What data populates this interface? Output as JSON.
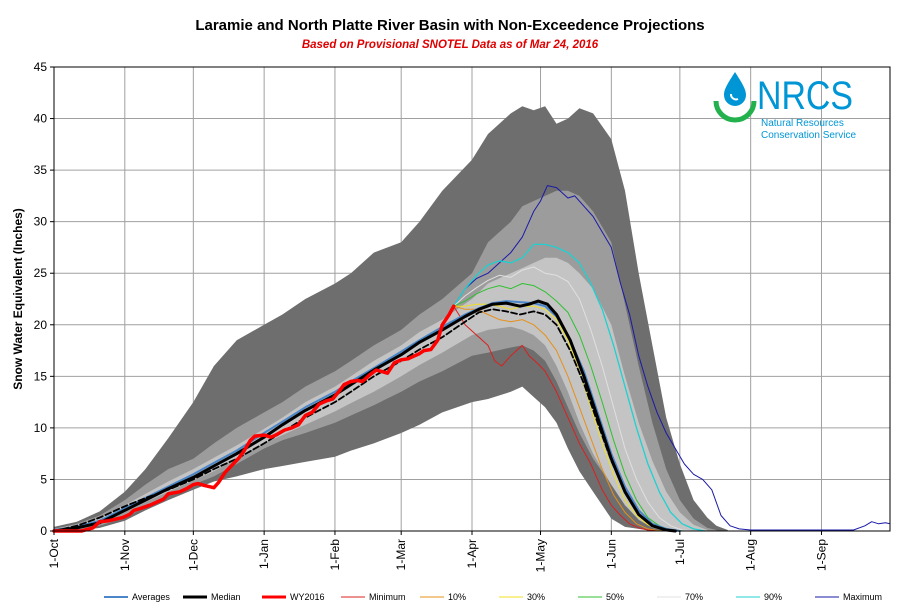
{
  "chart_data": {
    "type": "area",
    "title": "Laramie and North Platte River Basin with Non-Exceedence Projections",
    "subtitle": "Based on Provisional SNOTEL Data as of Mar 24, 2016",
    "xlabel": "",
    "ylabel": "Snow Water Equivalent (Inches)",
    "ylim": [
      0,
      45
    ],
    "yticks": [
      "0",
      "5",
      "10",
      "15",
      "20",
      "25",
      "30",
      "35",
      "40",
      "45"
    ],
    "xticks": [
      "1-Oct",
      "1-Nov",
      "1-Dec",
      "1-Jan",
      "1-Feb",
      "1-Mar",
      "1-Apr",
      "1-May",
      "1-Jun",
      "1-Jul",
      "1-Aug",
      "1-Sep"
    ],
    "xtick_days": [
      0,
      31,
      61,
      92,
      123,
      152,
      183,
      213,
      244,
      274,
      305,
      336
    ],
    "x_domain_days": [
      0,
      366
    ],
    "grid": true,
    "legend_position": "bottom",
    "colors": {
      "band_outer": "#6e6e6e",
      "band_mid": "#9c9c9c",
      "band_inner": "#c4c4c4",
      "averages": "#4a86c8",
      "median": "#000000",
      "wy2016": "#ff0000",
      "minimum": "#d92020",
      "p10": "#e69018",
      "p30": "#f0e020",
      "p50": "#30c030",
      "p70": "#e0e0e0",
      "p90": "#20d0d0",
      "maximum": "#1a1aa8"
    },
    "bands": [
      {
        "x": [
          0,
          10,
          20,
          31,
          40,
          50,
          61,
          70,
          80,
          92,
          100,
          110,
          123,
          130,
          140,
          152,
          160,
          170,
          183,
          190,
          200,
          205,
          210,
          215,
          220,
          225,
          230,
          236,
          244,
          250,
          256,
          262,
          268,
          274,
          280,
          286,
          290,
          295
        ],
        "upper": [
          0.4,
          0.9,
          1.9,
          3.8,
          6,
          9,
          12.5,
          16,
          18.5,
          20,
          21,
          22.5,
          24,
          25,
          27,
          28,
          30,
          33,
          36,
          38.5,
          40.5,
          41.2,
          40.8,
          41.2,
          39.5,
          40,
          41,
          40.5,
          38,
          33,
          25,
          18,
          11,
          6.5,
          3,
          1.3,
          0.5,
          0.1
        ],
        "lower": [
          0,
          0,
          0.3,
          1,
          2,
          3,
          4,
          4.8,
          5.3,
          6,
          6.3,
          6.7,
          7.2,
          7.8,
          8.5,
          9.5,
          10.3,
          11.5,
          12.5,
          12.8,
          13.5,
          14,
          13,
          12,
          10.5,
          8,
          5.8,
          3.8,
          1.2,
          0.4,
          0.2,
          0,
          0,
          0,
          0,
          0,
          0,
          0
        ]
      },
      {
        "x": [
          0,
          10,
          20,
          31,
          40,
          50,
          61,
          70,
          80,
          92,
          100,
          110,
          123,
          130,
          140,
          152,
          160,
          170,
          183,
          190,
          200,
          205,
          210,
          215,
          220,
          225,
          230,
          236,
          244,
          250,
          256,
          262,
          268,
          274,
          280,
          286,
          290
        ],
        "upper": [
          0.2,
          0.7,
          1.5,
          3,
          4.5,
          6,
          7,
          8.5,
          10,
          11.5,
          12.5,
          14,
          15.5,
          16.5,
          18,
          19.5,
          21,
          22.5,
          25,
          28,
          30,
          31.5,
          32,
          32.5,
          33,
          33,
          32.5,
          31,
          28,
          22,
          16,
          10.5,
          6,
          3,
          1.2,
          0.3,
          0.1
        ],
        "lower": [
          0,
          0.1,
          0.5,
          1.3,
          2.3,
          3.5,
          4.5,
          5.3,
          6.5,
          8,
          8.8,
          9.5,
          10.5,
          11.2,
          12.2,
          13.5,
          14.5,
          15.5,
          17,
          17.3,
          17.8,
          18,
          17.5,
          16.5,
          14.5,
          12,
          9.5,
          7,
          4.5,
          2.5,
          1.2,
          0.5,
          0.1,
          0,
          0,
          0,
          0
        ]
      },
      {
        "x": [
          0,
          10,
          20,
          31,
          40,
          50,
          61,
          70,
          80,
          92,
          100,
          110,
          123,
          130,
          140,
          152,
          160,
          170,
          183,
          190,
          200,
          205,
          210,
          215,
          220,
          225,
          230,
          236,
          244,
          250,
          256,
          262,
          268,
          274,
          280,
          286
        ],
        "upper": [
          0.2,
          0.6,
          1.3,
          2.5,
          3.6,
          4.8,
          6,
          7.1,
          8.3,
          9.9,
          11,
          12.5,
          14,
          15,
          16.5,
          18,
          19.3,
          20.5,
          22.5,
          24,
          25,
          25.5,
          26,
          26.5,
          26.5,
          26,
          25,
          23.5,
          20,
          15,
          10.5,
          6.8,
          3.8,
          1.8,
          0.6,
          0.1
        ],
        "lower": [
          0,
          0.2,
          0.7,
          1.8,
          2.8,
          3.8,
          4.9,
          5.8,
          7,
          8.5,
          9.3,
          10.3,
          11.6,
          12.4,
          13.5,
          15,
          16.1,
          17.3,
          19,
          19.5,
          19.8,
          19.5,
          19,
          18,
          16,
          13.5,
          10.5,
          7.5,
          4.5,
          2.5,
          1.1,
          0.3,
          0,
          0,
          0,
          0
        ]
      }
    ],
    "series": [
      {
        "name": "Averages",
        "key": "averages",
        "width": 2,
        "dash": "",
        "x": [
          0,
          10,
          20,
          31,
          40,
          50,
          61,
          70,
          80,
          92,
          100,
          110,
          123,
          130,
          140,
          152,
          160,
          170,
          180,
          186,
          192,
          198,
          204,
          210,
          215,
          220,
          226,
          232,
          238,
          244,
          250,
          256,
          262,
          268,
          274
        ],
        "y": [
          0.1,
          0.4,
          1,
          2.2,
          3.2,
          4.3,
          5.5,
          6.6,
          7.8,
          9.5,
          10.6,
          12,
          13.5,
          14.5,
          15.8,
          17.4,
          18.5,
          19.8,
          21,
          21.6,
          22.1,
          22.3,
          22.2,
          22.1,
          21.8,
          20.8,
          18.5,
          15.5,
          11.5,
          7.5,
          4.3,
          2,
          0.7,
          0.2,
          0
        ]
      },
      {
        "name": "Median",
        "key": "median",
        "width": 3,
        "dash": "",
        "x": [
          0,
          10,
          20,
          31,
          40,
          50,
          61,
          70,
          80,
          92,
          100,
          110,
          123,
          130,
          140,
          152,
          160,
          170,
          180,
          186,
          192,
          198,
          204,
          208,
          212,
          216,
          220,
          226,
          232,
          238,
          244,
          250,
          256,
          262,
          268,
          272
        ],
        "y": [
          0,
          0.3,
          0.8,
          2,
          3,
          4.1,
          5.2,
          6.3,
          7.5,
          9.1,
          10.3,
          11.7,
          13.2,
          14.2,
          15.6,
          17.1,
          18.3,
          19.5,
          20.8,
          21.5,
          22,
          22.1,
          21.8,
          22,
          22.3,
          22,
          21,
          18.5,
          15,
          11,
          7,
          3.8,
          1.6,
          0.5,
          0.1,
          0
        ]
      },
      {
        "name": "WY2016",
        "key": "wy2016",
        "width": 3.5,
        "dash": "",
        "x": [
          0,
          12,
          17,
          20,
          24,
          28,
          30,
          33,
          35,
          38,
          42,
          45,
          48,
          50,
          55,
          58,
          61,
          63,
          66,
          70,
          72,
          75,
          78,
          81,
          83,
          86,
          88,
          92,
          95,
          97,
          101,
          104,
          107,
          110,
          113,
          116,
          119,
          122,
          125,
          127,
          130,
          133,
          135,
          138,
          141,
          143,
          146,
          149,
          152,
          155,
          158,
          160,
          162,
          165,
          168,
          170,
          173,
          175
        ],
        "y": [
          0,
          0,
          0.3,
          0.9,
          1,
          1.2,
          1.3,
          1.6,
          2,
          2.2,
          2.5,
          2.8,
          3.1,
          3.6,
          3.8,
          4.1,
          4.5,
          4.6,
          4.4,
          4.2,
          4.7,
          5.7,
          6.4,
          7.1,
          7.7,
          8.8,
          9.2,
          9.3,
          9.1,
          9.3,
          9.8,
          10,
          10.3,
          11.2,
          11.5,
          12.3,
          12.6,
          12.8,
          13.6,
          14.2,
          14.5,
          14.6,
          14.5,
          15.1,
          15.6,
          15.5,
          15.3,
          16.3,
          16.6,
          16.7,
          17,
          17.2,
          17.5,
          17.6,
          18.5,
          20,
          21,
          21.8
        ]
      },
      {
        "name": "Minimum",
        "key": "minimum",
        "width": 1,
        "dash": "",
        "x": [
          175,
          180,
          185,
          190,
          193,
          196,
          200,
          205,
          208,
          212,
          215,
          220,
          225,
          230,
          235,
          240,
          244,
          248,
          252,
          256,
          260,
          264
        ],
        "y": [
          21.8,
          20,
          19,
          18,
          16.5,
          16,
          17,
          18,
          17,
          16.2,
          15.5,
          13.5,
          11,
          8.5,
          6.5,
          4,
          2.5,
          1.5,
          0.7,
          0.3,
          0.1,
          0
        ]
      },
      {
        "name": "10%",
        "key": "p10",
        "width": 1,
        "dash": "",
        "x": [
          175,
          180,
          185,
          190,
          195,
          200,
          205,
          210,
          215,
          220,
          225,
          230,
          235,
          240,
          245,
          250,
          255,
          260,
          264,
          268
        ],
        "y": [
          21.8,
          21.5,
          21.5,
          21,
          20.5,
          20.3,
          20.5,
          20,
          19,
          17.5,
          15,
          12,
          9,
          6,
          3.5,
          1.8,
          0.7,
          0.2,
          0.05,
          0
        ]
      },
      {
        "name": "30%",
        "key": "p30",
        "width": 1,
        "dash": "",
        "x": [
          175,
          180,
          185,
          190,
          195,
          200,
          205,
          210,
          215,
          220,
          225,
          230,
          235,
          240,
          245,
          250,
          255,
          260,
          265,
          270,
          274
        ],
        "y": [
          21.8,
          21.8,
          22,
          22,
          21.8,
          21.5,
          21.8,
          21.8,
          21.5,
          20.5,
          18.5,
          15.5,
          12,
          8.5,
          5.5,
          3,
          1.5,
          0.6,
          0.2,
          0.05,
          0
        ]
      },
      {
        "name": "50%",
        "key": "p50",
        "width": 1,
        "dash": "",
        "x": [
          175,
          180,
          185,
          190,
          195,
          200,
          205,
          210,
          215,
          220,
          225,
          230,
          235,
          240,
          245,
          250,
          255,
          260,
          265,
          270,
          276
        ],
        "y": [
          21.8,
          22.3,
          23,
          23.5,
          23.8,
          23.5,
          24,
          23.8,
          23.2,
          22.3,
          21.2,
          19,
          16,
          12.5,
          8.8,
          5.5,
          3,
          1.3,
          0.5,
          0.1,
          0
        ]
      },
      {
        "name": "70%",
        "key": "p70",
        "width": 1,
        "dash": "",
        "x": [
          175,
          180,
          185,
          190,
          195,
          200,
          205,
          210,
          215,
          220,
          225,
          230,
          235,
          240,
          245,
          250,
          255,
          260,
          265,
          270,
          275,
          280
        ],
        "y": [
          21.8,
          22.8,
          23.6,
          24.3,
          24.8,
          24.6,
          25.3,
          25.6,
          25,
          24.8,
          24.2,
          22.5,
          19.5,
          16,
          12,
          8,
          5,
          2.8,
          1.3,
          0.5,
          0.1,
          0
        ]
      },
      {
        "name": "90%",
        "key": "p90",
        "width": 1.3,
        "dash": "",
        "x": [
          175,
          180,
          185,
          190,
          195,
          200,
          205,
          210,
          215,
          220,
          225,
          230,
          235,
          240,
          245,
          250,
          255,
          260,
          265,
          270,
          275,
          280,
          285
        ],
        "y": [
          21.8,
          23.5,
          24.8,
          25.8,
          26.2,
          26,
          26.5,
          27.8,
          27.8,
          27.5,
          27,
          26,
          24,
          21.5,
          18,
          14,
          10,
          6.5,
          3.8,
          1.8,
          0.7,
          0.2,
          0
        ]
      },
      {
        "name": "Maximum",
        "key": "maximum",
        "width": 1,
        "dash": "",
        "x": [
          175,
          180,
          185,
          190,
          195,
          200,
          205,
          210,
          213,
          216,
          220,
          225,
          228,
          232,
          236,
          240,
          244,
          248,
          252,
          256,
          260,
          264,
          268,
          272,
          276,
          280,
          284,
          288,
          292,
          296,
          300,
          305,
          310,
          320,
          330,
          340,
          350,
          355,
          358,
          361,
          364,
          366
        ],
        "y": [
          21.8,
          23.5,
          24.5,
          25,
          26,
          27,
          28.5,
          31,
          32,
          33.5,
          33.3,
          32.3,
          32.5,
          31.5,
          30.5,
          29,
          27.5,
          24,
          21,
          17,
          14,
          11.5,
          9.5,
          8,
          6.5,
          5.5,
          5,
          4,
          1.5,
          0.5,
          0.2,
          0.1,
          0.1,
          0.1,
          0.1,
          0.1,
          0.1,
          0.5,
          0.9,
          0.7,
          0.8,
          0.7
        ]
      }
    ],
    "dashed_series": {
      "name": "Averages (dashed)",
      "key": "median",
      "width": 1.8,
      "dash": "6,3",
      "x": [
        0,
        10,
        20,
        31,
        40,
        50,
        61,
        70,
        80,
        92,
        100,
        110,
        123,
        130,
        140,
        152,
        160,
        170,
        180,
        186,
        192,
        198,
        204,
        210,
        215,
        220,
        226,
        232,
        238,
        244,
        250,
        256,
        262,
        268,
        272
      ],
      "y": [
        0,
        0.5,
        1.3,
        2.4,
        3.2,
        4,
        5,
        6,
        7,
        8.5,
        9.6,
        11,
        12.5,
        13.5,
        15,
        16.5,
        17.6,
        18.8,
        20.3,
        21.2,
        21.5,
        21.3,
        21,
        21.3,
        21,
        20,
        17.5,
        14.3,
        10.5,
        6.8,
        3.8,
        1.6,
        0.5,
        0.1,
        0
      ]
    }
  },
  "logo": {
    "text": "NRCS",
    "line1": "Natural Resources",
    "line2": "Conservation Service"
  },
  "legend": {
    "items": [
      {
        "label": "Averages",
        "color_key": "averages",
        "width": 2
      },
      {
        "label": "Median",
        "color_key": "median",
        "width": 3
      },
      {
        "label": "WY2016",
        "color_key": "wy2016",
        "width": 3
      },
      {
        "label": "Minimum",
        "color_key": "minimum",
        "width": 1
      },
      {
        "label": "10%",
        "color_key": "p10",
        "width": 1
      },
      {
        "label": "30%",
        "color_key": "p30",
        "width": 1
      },
      {
        "label": "50%",
        "color_key": "p50",
        "width": 1
      },
      {
        "label": "70%",
        "color_key": "p70",
        "width": 1
      },
      {
        "label": "90%",
        "color_key": "p90",
        "width": 1
      },
      {
        "label": "Maximum",
        "color_key": "maximum",
        "width": 1
      }
    ]
  }
}
